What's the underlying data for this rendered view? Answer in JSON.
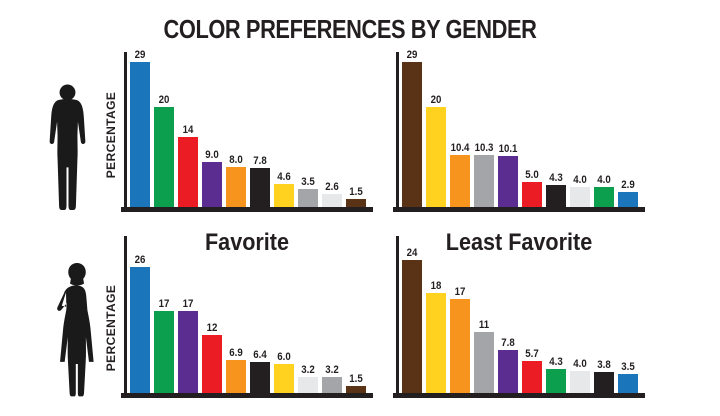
{
  "title": "COLOR PREFERENCES BY GENDER",
  "column_titles": {
    "favorite": "Favorite",
    "least_favorite": "Least Favorite"
  },
  "y_axis_label": "PERCENTAGE",
  "palette": {
    "blue": "#1b75bb",
    "green": "#0c9f4d",
    "red": "#ec1c24",
    "purple": "#5c2d91",
    "orange": "#f7941e",
    "black": "#231f20",
    "yellow": "#ffd21f",
    "gray": "#a3a5a8",
    "white": "#e7e8e9",
    "brown": "#5a3317"
  },
  "axis_color": "#231f20",
  "silhouette_color": "#1a1a1a",
  "chart_data": [
    {
      "type": "bar",
      "group": "Male",
      "measure": "Favorite",
      "ylabel": "PERCENTAGE",
      "categories": [
        "blue",
        "green",
        "red",
        "purple",
        "orange",
        "black",
        "yellow",
        "gray",
        "white",
        "brown"
      ],
      "values": [
        29,
        20,
        14,
        9.0,
        8.0,
        7.8,
        4.6,
        3.5,
        2.6,
        1.5
      ],
      "labels": [
        "29",
        "20",
        "14",
        "9.0",
        "8.0",
        "7.8",
        "4.6",
        "3.5",
        "2.6",
        "1.5"
      ],
      "ylim": [
        0,
        30
      ],
      "grid": false,
      "legend": false
    },
    {
      "type": "bar",
      "group": "Male",
      "measure": "Least Favorite",
      "ylabel": "",
      "categories": [
        "brown",
        "yellow",
        "orange",
        "gray",
        "purple",
        "red",
        "black",
        "white",
        "green",
        "blue"
      ],
      "values": [
        29,
        20,
        10.4,
        10.3,
        10.1,
        5.0,
        4.3,
        4.0,
        4.0,
        2.9
      ],
      "labels": [
        "29",
        "20",
        "10.4",
        "10.3",
        "10.1",
        "5.0",
        "4.3",
        "4.0",
        "4.0",
        "2.9"
      ],
      "ylim": [
        0,
        30
      ],
      "grid": false,
      "legend": false
    },
    {
      "type": "bar",
      "group": "Female",
      "measure": "Favorite",
      "ylabel": "PERCENTAGE",
      "categories": [
        "blue",
        "green",
        "purple",
        "red",
        "orange",
        "black",
        "yellow",
        "white",
        "gray",
        "brown"
      ],
      "values": [
        26,
        17,
        17,
        12,
        6.9,
        6.4,
        6.0,
        3.2,
        3.2,
        1.5
      ],
      "labels": [
        "26",
        "17",
        "17",
        "12",
        "6.9",
        "6.4",
        "6.0",
        "3.2",
        "3.2",
        "1.5"
      ],
      "ylim": [
        0,
        30
      ],
      "grid": false,
      "legend": false
    },
    {
      "type": "bar",
      "group": "Female",
      "measure": "Least Favorite",
      "ylabel": "",
      "categories": [
        "brown",
        "yellow",
        "orange",
        "gray",
        "purple",
        "red",
        "green",
        "white",
        "black",
        "blue"
      ],
      "values": [
        24,
        18,
        17,
        11,
        7.8,
        5.7,
        4.3,
        4.0,
        3.8,
        3.5
      ],
      "labels": [
        "24",
        "18",
        "17",
        "11",
        "7.8",
        "5.7",
        "4.3",
        "4.0",
        "3.8",
        "3.5"
      ],
      "ylim": [
        0,
        30
      ],
      "grid": false,
      "legend": false
    }
  ]
}
